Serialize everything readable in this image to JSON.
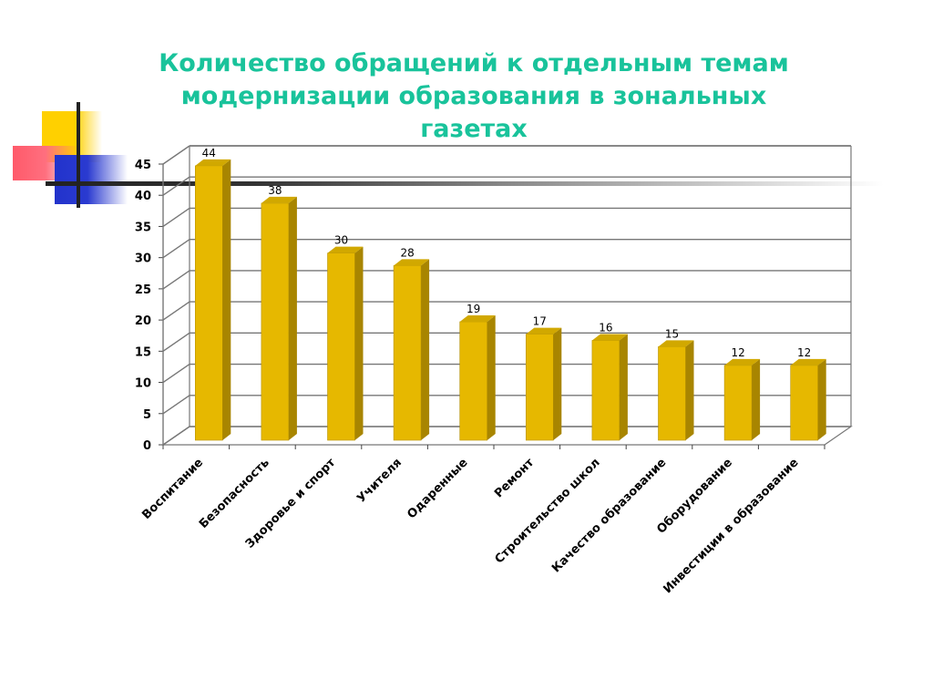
{
  "slide": {
    "title_line1": "Количество обращений к отдельным темам",
    "title_line2": "модернизации образования в зональных газетах"
  },
  "colors": {
    "title": "#19c39b",
    "bar_front": "#e6b800",
    "bar_side": "#a88500",
    "bar_top": "#d1a800",
    "grid": "#777777",
    "deco_yellow": "#ffd000",
    "deco_red": "#ff5a6a",
    "deco_blue": "#2233cc"
  },
  "chart_data": {
    "type": "bar",
    "title": "Количество обращений к отдельным темам модернизации образования в зональных газетах",
    "categories": [
      "Воспитание",
      "Безопасность",
      "Здоровье и спорт",
      "Учителя",
      "Одаренные",
      "Ремонт",
      "Строительство школ",
      "Качество образование",
      "Оборудование",
      "Инвестиции в образование"
    ],
    "values": [
      44,
      38,
      30,
      28,
      19,
      17,
      16,
      15,
      12,
      12
    ],
    "ylim": [
      0,
      45
    ],
    "yticks": [
      0,
      5,
      10,
      15,
      20,
      25,
      30,
      35,
      40,
      45
    ],
    "grid": true,
    "data_labels": true,
    "style": "3d-column"
  }
}
